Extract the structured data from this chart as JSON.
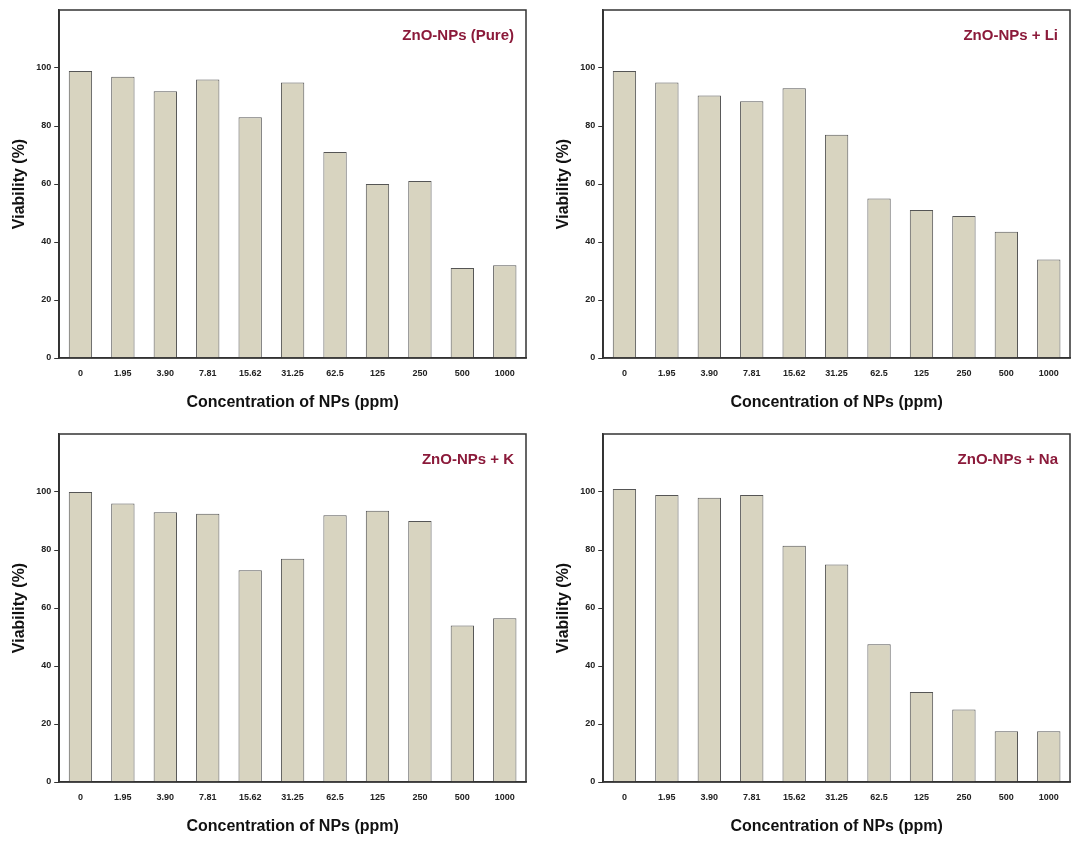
{
  "chart_data": [
    {
      "type": "bar",
      "title": "ZnO-NPs (Pure)",
      "xlabel": "Concentration of NPs (ppm)",
      "ylabel": "Viability (%)",
      "categories": [
        "0",
        "1.95",
        "3.90",
        "7.81",
        "15.62",
        "31.25",
        "62.5",
        "125",
        "250",
        "500",
        "1000"
      ],
      "values": [
        99,
        97,
        92,
        96,
        83,
        95,
        71,
        60,
        61,
        31,
        32
      ],
      "color": "#d8d4c0",
      "ylim": [
        0,
        120
      ],
      "yticks": [
        0,
        20,
        40,
        60,
        80,
        100
      ],
      "grid": false,
      "legend": false
    },
    {
      "type": "bar",
      "title": "ZnO-NPs + Li",
      "xlabel": "Concentration of NPs (ppm)",
      "ylabel": "Viability (%)",
      "categories": [
        "0",
        "1.95",
        "3.90",
        "7.81",
        "15.62",
        "31.25",
        "62.5",
        "125",
        "250",
        "500",
        "1000"
      ],
      "values": [
        99,
        95,
        90.5,
        88.5,
        93,
        77,
        55,
        51,
        49,
        43.5,
        34
      ],
      "color": "#d8d4c0",
      "ylim": [
        0,
        120
      ],
      "yticks": [
        0,
        20,
        40,
        60,
        80,
        100
      ],
      "grid": false,
      "legend": false
    },
    {
      "type": "bar",
      "title": "ZnO-NPs + K",
      "xlabel": "Concentration of NPs (ppm)",
      "ylabel": "Viability (%)",
      "categories": [
        "0",
        "1.95",
        "3.90",
        "7.81",
        "15.62",
        "31.25",
        "62.5",
        "125",
        "250",
        "500",
        "1000"
      ],
      "values": [
        100,
        96,
        93,
        92.5,
        73,
        77,
        92,
        93.5,
        90,
        54,
        56.5
      ],
      "color": "#d8d4c0",
      "ylim": [
        0,
        120
      ],
      "yticks": [
        0,
        20,
        40,
        60,
        80,
        100
      ],
      "grid": false,
      "legend": false
    },
    {
      "type": "bar",
      "title": "ZnO-NPs + Na",
      "xlabel": "Concentration of NPs (ppm)",
      "ylabel": "Viability (%)",
      "categories": [
        "0",
        "1.95",
        "3.90",
        "7.81",
        "15.62",
        "31.25",
        "62.5",
        "125",
        "250",
        "500",
        "1000"
      ],
      "values": [
        101,
        99,
        98,
        99,
        81.5,
        75,
        47.5,
        31,
        25,
        17.5,
        17.5
      ],
      "color": "#d8d4c0",
      "ylim": [
        0,
        120
      ],
      "yticks": [
        0,
        20,
        40,
        60,
        80,
        100
      ],
      "grid": false,
      "legend": false
    }
  ]
}
